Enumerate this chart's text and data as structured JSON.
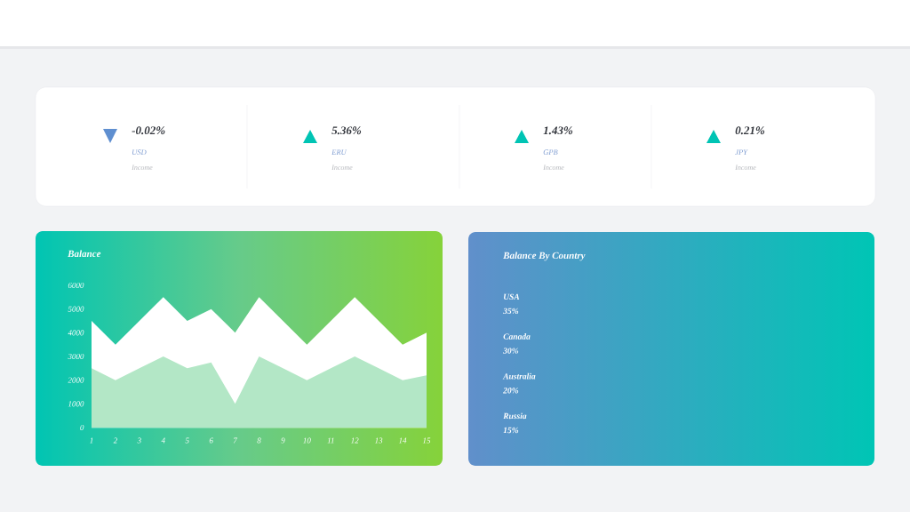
{
  "chart_data": [
    {
      "type": "other",
      "categories": [
        "USD",
        "ERU",
        "GPB",
        "JPY"
      ],
      "values": [
        -0.02,
        5.36,
        1.43,
        0.21
      ],
      "value_labels": [
        "-0.02%",
        "5.36%",
        "1.43%",
        "0.21%"
      ],
      "annotations": [
        "Income",
        "Income",
        "Income",
        "Income"
      ]
    },
    {
      "type": "area",
      "title": "Balance",
      "x": [
        1,
        2,
        3,
        4,
        5,
        6,
        7,
        8,
        9,
        10,
        11,
        12,
        13,
        14,
        15
      ],
      "xlim": [
        1,
        15
      ],
      "xticks": [
        1,
        2,
        3,
        4,
        5,
        6,
        7,
        8,
        9,
        10,
        11,
        12,
        13,
        14,
        15
      ],
      "ylim": [
        0,
        6000
      ],
      "yticks": [
        0,
        1000,
        2000,
        3000,
        4000,
        5000,
        6000
      ],
      "series": [
        {
          "color": "#ffffff",
          "values": [
            4500,
            3500,
            4500,
            5500,
            4500,
            5000,
            4000,
            5500,
            4500,
            3500,
            4500,
            5500,
            4500,
            3500,
            4000
          ]
        },
        {
          "color": "#b3e7c6",
          "values": [
            2500,
            2000,
            2500,
            3000,
            2500,
            2750,
            1000,
            3000,
            2500,
            2000,
            2500,
            3000,
            2500,
            2000,
            2200
          ]
        }
      ]
    },
    {
      "type": "other",
      "title": "Balance By Country",
      "categories": [
        "USA",
        "Canada",
        "Australia",
        "Russia"
      ],
      "value_labels": [
        "35%",
        "30%",
        "20%",
        "15%"
      ]
    }
  ]
}
